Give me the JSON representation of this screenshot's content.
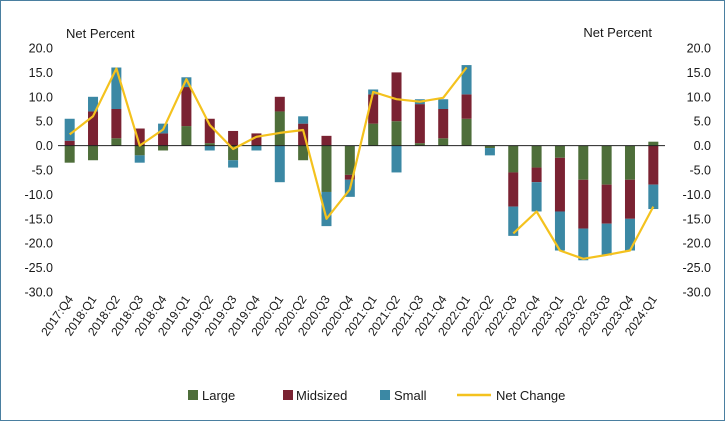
{
  "chart_data": {
    "type": "bar",
    "stacked": true,
    "y_axis_label_left": "Net Percent",
    "y_axis_label_right": "Net Percent",
    "ylim": [
      -30,
      20
    ],
    "y_ticks": [
      "20.0",
      "15.0",
      "10.0",
      "5.0",
      "0.0",
      "-5.0",
      "-10.0",
      "-15.0",
      "-20.0",
      "-25.0",
      "-30.0"
    ],
    "y_tick_values": [
      20,
      15,
      10,
      5,
      0,
      -5,
      -10,
      -15,
      -20,
      -25,
      -30
    ],
    "grid": false,
    "legend_position": "bottom",
    "categories": [
      "2017:Q4",
      "2018:Q1",
      "2018:Q2",
      "2018:Q3",
      "2018:Q4",
      "2019:Q1",
      "2019:Q2",
      "2019:Q3",
      "2019:Q4",
      "2020:Q1",
      "2020:Q2",
      "2020:Q3",
      "2020:Q4",
      "2021:Q1",
      "2021:Q2",
      "2021:Q3",
      "2021:Q4",
      "2022:Q1",
      "2022:Q2",
      "2022:Q3",
      "2022:Q4",
      "2023:Q1",
      "2023:Q2",
      "2023:Q3",
      "2023:Q4",
      "2024:Q1"
    ],
    "series": [
      {
        "name": "Large",
        "color": "#4e6e3a",
        "values": [
          -3.5,
          -3,
          1.5,
          -2,
          -1,
          4,
          0.5,
          -3,
          0,
          7,
          -3,
          -9.5,
          -6,
          4.5,
          5,
          0.5,
          1.5,
          5.5,
          -0.5,
          -5.5,
          -4.5,
          -2.5,
          -7,
          -8,
          -7,
          0.8
        ]
      },
      {
        "name": "Midsized",
        "color": "#7a2232",
        "values": [
          1,
          7,
          6,
          3.5,
          2.5,
          8,
          5,
          3,
          2.5,
          3,
          4.5,
          2,
          -1,
          6,
          10,
          8,
          6,
          5,
          0,
          -7,
          -3,
          -11,
          -10,
          -8,
          -8,
          -8
        ]
      },
      {
        "name": "Small",
        "color": "#3b88a4",
        "values": [
          4.5,
          3,
          8.5,
          -1.5,
          2,
          2,
          -1,
          -1.5,
          -1,
          -7.5,
          1.5,
          -7,
          -3.5,
          1,
          -5.5,
          1,
          2,
          6,
          -1.5,
          -6,
          -6,
          -8,
          -6.5,
          -6.5,
          -6.5,
          -5
        ]
      },
      {
        "name": "Net Change",
        "color": "#f4c21e",
        "type": "line",
        "values": [
          2.3,
          6,
          15.8,
          0,
          3.3,
          13.6,
          4.2,
          -0.7,
          1.8,
          2.6,
          3.2,
          -15,
          -9,
          11,
          9.5,
          9,
          9.8,
          16,
          null,
          -18,
          -13.5,
          -21.5,
          -23.2,
          -22.4,
          -21.5,
          -12.5
        ]
      }
    ]
  }
}
